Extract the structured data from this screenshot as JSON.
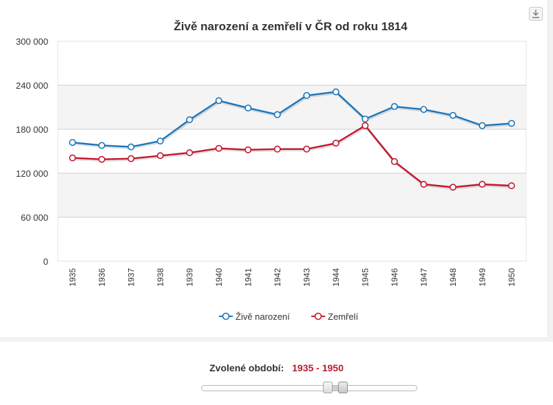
{
  "export_icon": "download-icon",
  "chart_data": {
    "type": "line",
    "title": "Živě narození a zemřelí v ČR od roku 1814",
    "categories": [
      "1935",
      "1936",
      "1937",
      "1938",
      "1939",
      "1940",
      "1941",
      "1942",
      "1943",
      "1944",
      "1945",
      "1946",
      "1947",
      "1948",
      "1949",
      "1950"
    ],
    "series": [
      {
        "name": "Živě narození",
        "color": "#1b75bb",
        "values": [
          162000,
          158000,
          156000,
          164000,
          193000,
          219000,
          209000,
          200000,
          226000,
          231000,
          194000,
          211000,
          207000,
          199000,
          185000,
          188000
        ]
      },
      {
        "name": "Zemřelí",
        "color": "#c4162e",
        "values": [
          141000,
          139000,
          140000,
          144000,
          148000,
          154000,
          152000,
          153000,
          153000,
          161000,
          185000,
          136000,
          105000,
          101000,
          105000,
          103000
        ]
      }
    ],
    "y_ticks": [
      "0",
      "60 000",
      "120 000",
      "180 000",
      "240 000",
      "300 000"
    ],
    "ylim": [
      0,
      300000
    ],
    "grid": true,
    "alternate_bands": true,
    "legend_position": "bottom-center"
  },
  "period": {
    "label": "Zvolené období:",
    "value": "1935 - 1950"
  },
  "slider": {
    "start": 0.59,
    "end": 0.66
  }
}
